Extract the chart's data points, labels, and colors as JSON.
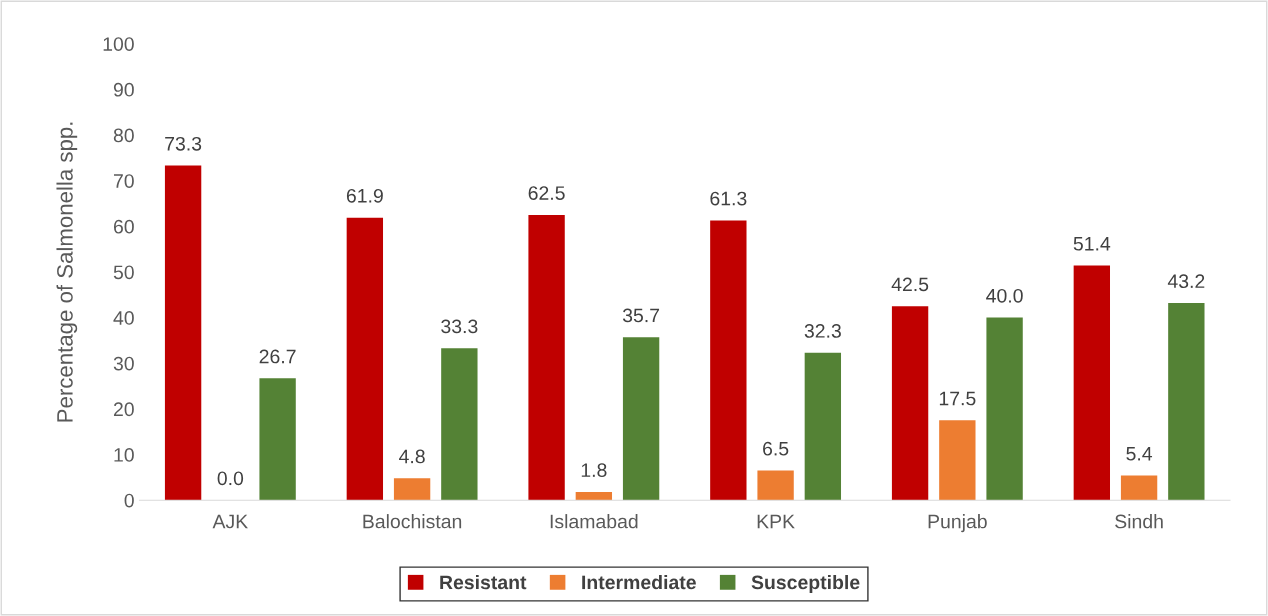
{
  "chart_data": {
    "type": "bar",
    "ylabel": "Percentage of Salmonella spp.",
    "categories": [
      "AJK",
      "Balochistan",
      "Islamabad",
      "KPK",
      "Punjab",
      "Sindh"
    ],
    "series": [
      {
        "name": "Resistant",
        "color": "#c00000",
        "values": [
          73.3,
          61.9,
          62.5,
          61.3,
          42.5,
          51.4
        ],
        "value_labels": [
          "73.3",
          "61.9",
          "62.5",
          "61.3",
          "42.5",
          "51.4"
        ]
      },
      {
        "name": "Intermediate",
        "color": "#ed7d31",
        "values": [
          0.0,
          4.8,
          1.8,
          6.5,
          17.5,
          5.4
        ],
        "value_labels": [
          "0.0",
          "4.8",
          "1.8",
          "6.5",
          "17.5",
          "5.4"
        ]
      },
      {
        "name": "Susceptible",
        "color": "#548235",
        "values": [
          26.7,
          33.3,
          35.7,
          32.3,
          40.0,
          43.2
        ],
        "value_labels": [
          "26.7",
          "33.3",
          "35.7",
          "32.3",
          "40.0",
          "43.2"
        ]
      }
    ],
    "ylim": [
      0,
      100
    ],
    "yticks": [
      0,
      10,
      20,
      30,
      40,
      50,
      60,
      70,
      80,
      90,
      100
    ],
    "grid": false,
    "legend": "bottom"
  }
}
